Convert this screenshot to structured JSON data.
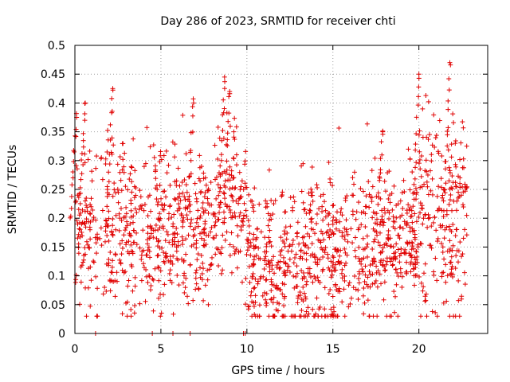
{
  "chart_data": {
    "type": "scatter",
    "title": "Day 286 of 2023, SRMTID for receiver chti",
    "xlabel": "GPS time / hours",
    "ylabel": "SRMTID / TECUs",
    "xlim": [
      0,
      24
    ],
    "ylim": [
      0,
      0.5
    ],
    "x_ticks": [
      0,
      5,
      10,
      15,
      20
    ],
    "x_tick_labels": [
      "0",
      "5",
      "10",
      "15",
      "20"
    ],
    "y_ticks": [
      0,
      0.05,
      0.1,
      0.15,
      0.2,
      0.25,
      0.3,
      0.35,
      0.4,
      0.45,
      0.5
    ],
    "y_tick_labels": [
      "0",
      "0.05",
      "0.1",
      "0.15",
      "0.2",
      "0.25",
      "0.3",
      "0.35",
      "0.4",
      "0.45",
      "0.5"
    ],
    "grid": true,
    "marker": "+",
    "marker_color": "#e00000",
    "data_x_range": [
      0,
      22.8
    ],
    "typical_values": {
      "hours_0_to_8": [
        0.1,
        0.25
      ],
      "hours_8_to_10": [
        0.15,
        0.3
      ],
      "hours_10_to_16": [
        0.05,
        0.2
      ],
      "hours_16_to_20": [
        0.08,
        0.22
      ],
      "hours_20_to_23": [
        0.1,
        0.3
      ]
    },
    "peaks": [
      {
        "x": 0.1,
        "y": 0.375
      },
      {
        "x": 0.6,
        "y": 0.4
      },
      {
        "x": 2.2,
        "y": 0.425
      },
      {
        "x": 6.9,
        "y": 0.4
      },
      {
        "x": 8.7,
        "y": 0.445
      },
      {
        "x": 9.0,
        "y": 0.42
      },
      {
        "x": 17.9,
        "y": 0.35
      },
      {
        "x": 20.0,
        "y": 0.45
      },
      {
        "x": 21.8,
        "y": 0.47
      }
    ],
    "zero_points_x": [
      1.2,
      4.5,
      5.7,
      6.7,
      9.8,
      9.9
    ]
  }
}
